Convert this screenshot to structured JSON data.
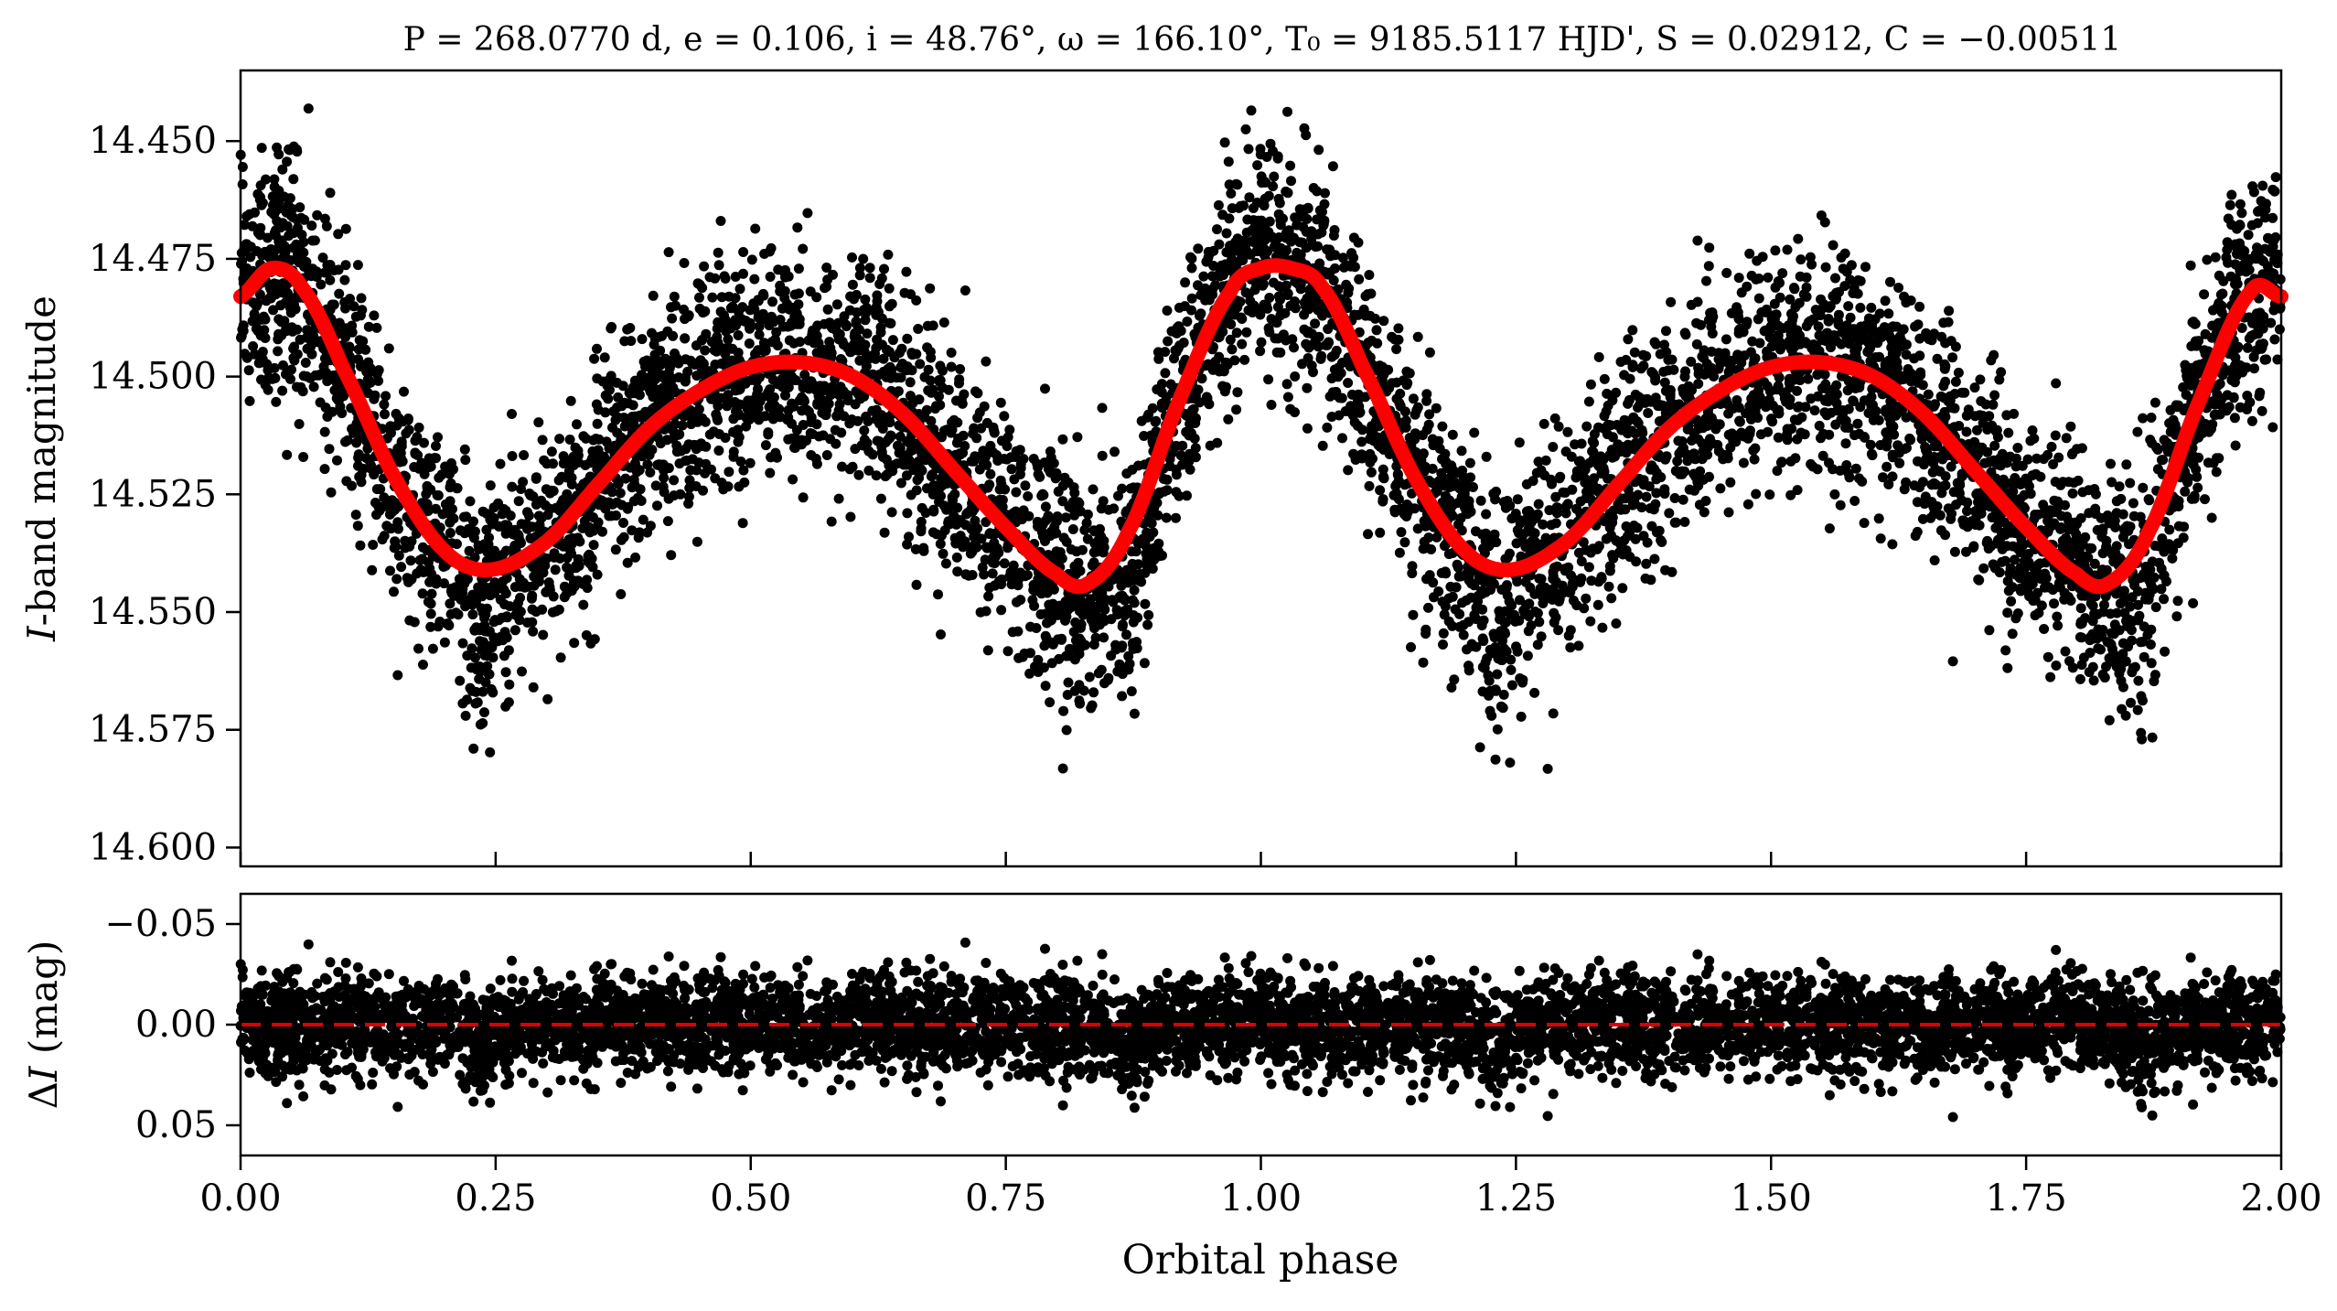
{
  "chart_data": [
    {
      "panel": "light-curve",
      "type": "scatter",
      "title": "P = 268.0770 d, e = 0.106, i = 48.76°, ω = 166.10°, T₀ = 9185.5117 HJD', S = 0.02912, C = −0.00511",
      "xlabel": "",
      "ylabel_italic": "I",
      "ylabel": "-band magnitude",
      "xlim": [
        0.0,
        2.0
      ],
      "ylim": [
        14.604,
        14.435
      ],
      "y_inverted": true,
      "xticks": [
        0.0,
        0.25,
        0.5,
        0.75,
        1.0,
        1.25,
        1.5,
        1.75,
        2.0
      ],
      "yticks": [
        "14.450",
        "14.475",
        "14.500",
        "14.525",
        "14.550",
        "14.575",
        "14.600"
      ],
      "ytick_values": [
        14.45,
        14.475,
        14.5,
        14.525,
        14.55,
        14.575,
        14.6
      ],
      "marker_color": "#000000",
      "series": [
        {
          "kind": "model",
          "color": "#ff0000",
          "x": [
            0.0,
            0.03,
            0.06,
            0.1,
            0.15,
            0.2,
            0.245,
            0.3,
            0.35,
            0.4,
            0.45,
            0.5,
            0.55,
            0.6,
            0.65,
            0.7,
            0.75,
            0.8,
            0.83,
            0.87,
            0.92,
            0.97,
            1.0,
            1.03,
            1.06,
            1.1,
            1.15,
            1.2,
            1.245,
            1.3,
            1.35,
            1.4,
            1.45,
            1.5,
            1.55,
            1.6,
            1.65,
            1.7,
            1.75,
            1.8,
            1.83,
            1.87,
            1.92,
            1.97,
            2.0
          ],
          "y": [
            14.483,
            14.477,
            14.481,
            14.498,
            14.521,
            14.537,
            14.541,
            14.535,
            14.523,
            14.511,
            14.503,
            14.498,
            14.497,
            14.5,
            14.508,
            14.52,
            14.532,
            14.542,
            14.544,
            14.533,
            14.505,
            14.482,
            14.477,
            14.477,
            14.481,
            14.498,
            14.521,
            14.537,
            14.541,
            14.535,
            14.523,
            14.511,
            14.503,
            14.498,
            14.497,
            14.5,
            14.508,
            14.52,
            14.532,
            14.542,
            14.544,
            14.533,
            14.505,
            14.482,
            14.483
          ]
        }
      ]
    },
    {
      "panel": "residuals",
      "type": "scatter",
      "title": "",
      "xlabel": "Orbital phase",
      "ylabel_prefix": "Δ",
      "ylabel_italic": "I",
      "ylabel": " (mag)",
      "xlim": [
        0.0,
        2.0
      ],
      "ylim": [
        0.065,
        -0.065
      ],
      "y_inverted": true,
      "xticks": [
        "0.00",
        "0.25",
        "0.50",
        "0.75",
        "1.00",
        "1.25",
        "1.50",
        "1.75",
        "2.00"
      ],
      "xtick_values": [
        0.0,
        0.25,
        0.5,
        0.75,
        1.0,
        1.25,
        1.5,
        1.75,
        2.0
      ],
      "yticks": [
        "−0.05",
        "0.00",
        "0.05"
      ],
      "ytick_values": [
        -0.05,
        0.0,
        0.05
      ],
      "marker_color": "#000000",
      "reference_line": {
        "y": 0.0,
        "style": "dashed",
        "color": "#e00000"
      },
      "scatter_sigma": 0.012
    }
  ]
}
